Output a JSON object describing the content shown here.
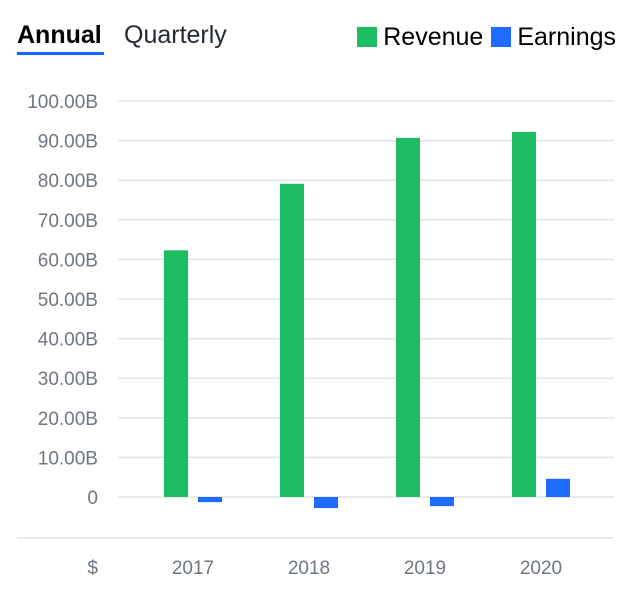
{
  "tabs": [
    {
      "label": "Annual",
      "active": true
    },
    {
      "label": "Quarterly",
      "active": false
    }
  ],
  "currency_symbol": "$",
  "colors": {
    "revenue": "#1ebc63",
    "earnings": "#1d6cff",
    "grid": "#e0e4e9",
    "tab_accent": "#0f69ff"
  },
  "chart_data": {
    "type": "bar",
    "categories": [
      "2017",
      "2018",
      "2019",
      "2020"
    ],
    "series": [
      {
        "name": "Revenue",
        "values": [
          62.3,
          79.1,
          90.7,
          92.2
        ]
      },
      {
        "name": "Earnings",
        "values": [
          -1.3,
          -2.8,
          -2.3,
          4.6
        ]
      }
    ],
    "ylim": [
      0,
      100
    ],
    "yticks": [
      0,
      10,
      20,
      30,
      40,
      50,
      60,
      70,
      80,
      90,
      100
    ],
    "ytick_labels": [
      "0",
      "10.00B",
      "20.00B",
      "30.00B",
      "40.00B",
      "50.00B",
      "60.00B",
      "70.00B",
      "80.00B",
      "90.00B",
      "100.00B"
    ],
    "legend_position": "top-right",
    "grid": true
  }
}
